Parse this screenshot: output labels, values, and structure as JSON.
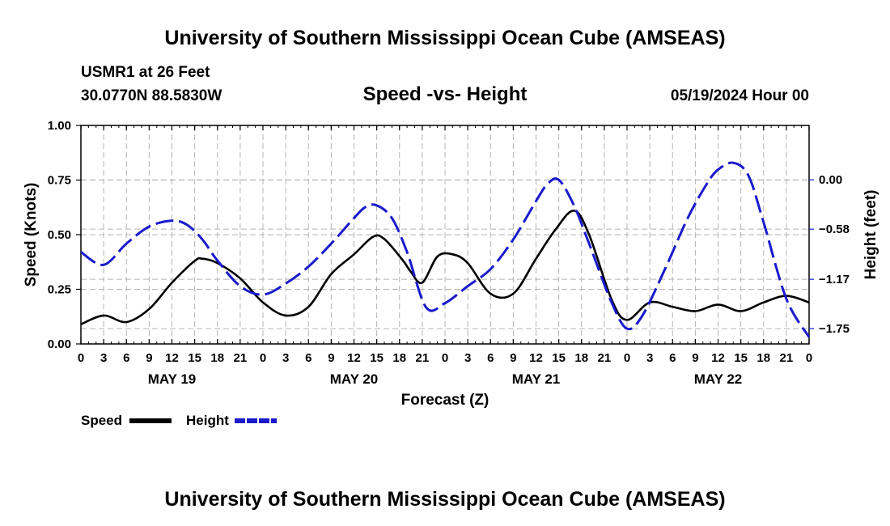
{
  "header": {
    "title": "University of Southern Mississippi Ocean Cube (AMSEAS)",
    "station": "USMR1 at 26 Feet",
    "location": "30.0770N  88.5830W",
    "subtitle": "Speed -vs- Height",
    "date": "05/19/2024 Hour 00"
  },
  "footer": {
    "title": "University of Southern Mississippi Ocean Cube (AMSEAS)"
  },
  "legend": {
    "speed_label": "Speed",
    "height_label": "Height"
  },
  "colors": {
    "speed": "#000000",
    "height": "#1a1acc",
    "grid": "#b4b4b4"
  },
  "chart_data": {
    "type": "line",
    "xlabel": "Forecast (Z)",
    "ylabel": "Speed (Knots)",
    "y2label": "Height (feet)",
    "x_range_hours": [
      0,
      96
    ],
    "ylim": [
      0,
      1
    ],
    "y2lim": [
      -1.93,
      0.64
    ],
    "y_ticks": [
      "0.00",
      "0.25",
      "0.50",
      "0.75",
      "1.00"
    ],
    "y2_ticks": [
      {
        "value": 0.0,
        "label": "0.00"
      },
      {
        "value": -0.58,
        "label": "−0.58"
      },
      {
        "value": -1.17,
        "label": "−1.17"
      },
      {
        "value": -1.75,
        "label": "−1.75"
      }
    ],
    "x_tick_labels": [
      "0",
      "3",
      "6",
      "9",
      "12",
      "15",
      "18",
      "21",
      "0",
      "3",
      "6",
      "9",
      "12",
      "15",
      "18",
      "21",
      "0",
      "3",
      "6",
      "9",
      "12",
      "15",
      "18",
      "21",
      "0",
      "3",
      "6",
      "9",
      "12",
      "15",
      "18",
      "21",
      "0"
    ],
    "day_labels": [
      {
        "label": "MAY 19",
        "hour": 12
      },
      {
        "label": "MAY 20",
        "hour": 36
      },
      {
        "label": "MAY 21",
        "hour": 60
      },
      {
        "label": "MAY 22",
        "hour": 84
      }
    ],
    "series": [
      {
        "name": "Speed",
        "axis": "left",
        "style": "solid",
        "x": [
          0,
          3,
          6,
          9,
          12,
          15,
          16,
          18,
          21,
          24,
          27,
          30,
          33,
          36,
          38.5,
          40,
          42.5,
          43.5,
          45,
          47,
          49,
          51,
          54,
          57,
          60,
          62.5,
          65,
          67,
          70,
          72,
          75,
          78,
          81,
          84,
          87,
          90,
          93,
          96
        ],
        "values": [
          0.09,
          0.13,
          0.1,
          0.16,
          0.28,
          0.38,
          0.39,
          0.37,
          0.3,
          0.19,
          0.13,
          0.17,
          0.32,
          0.41,
          0.49,
          0.48,
          0.38,
          0.33,
          0.28,
          0.4,
          0.41,
          0.37,
          0.23,
          0.23,
          0.39,
          0.52,
          0.61,
          0.5,
          0.2,
          0.11,
          0.19,
          0.17,
          0.15,
          0.18,
          0.15,
          0.19,
          0.22,
          0.19
        ]
      },
      {
        "name": "Height",
        "axis": "right",
        "style": "dashed",
        "x": [
          0,
          3,
          6,
          9,
          12,
          14,
          16,
          18,
          21,
          24,
          27,
          30,
          33,
          36,
          37.5,
          39,
          41,
          43,
          45.5,
          48,
          51,
          54,
          57,
          60,
          61.5,
          63,
          65,
          67,
          70,
          72,
          74,
          77,
          80,
          82.5,
          84,
          86,
          88,
          90,
          93,
          96
        ],
        "values": [
          -0.85,
          -1.0,
          -0.75,
          -0.55,
          -0.48,
          -0.53,
          -0.7,
          -0.95,
          -1.25,
          -1.35,
          -1.22,
          -1.02,
          -0.75,
          -0.45,
          -0.32,
          -0.3,
          -0.45,
          -0.85,
          -1.5,
          -1.45,
          -1.25,
          -1.05,
          -0.7,
          -0.25,
          -0.05,
          0.0,
          -0.3,
          -0.75,
          -1.45,
          -1.75,
          -1.6,
          -1.05,
          -0.45,
          -0.05,
          0.12,
          0.2,
          0.05,
          -0.5,
          -1.4,
          -1.85
        ]
      }
    ]
  }
}
